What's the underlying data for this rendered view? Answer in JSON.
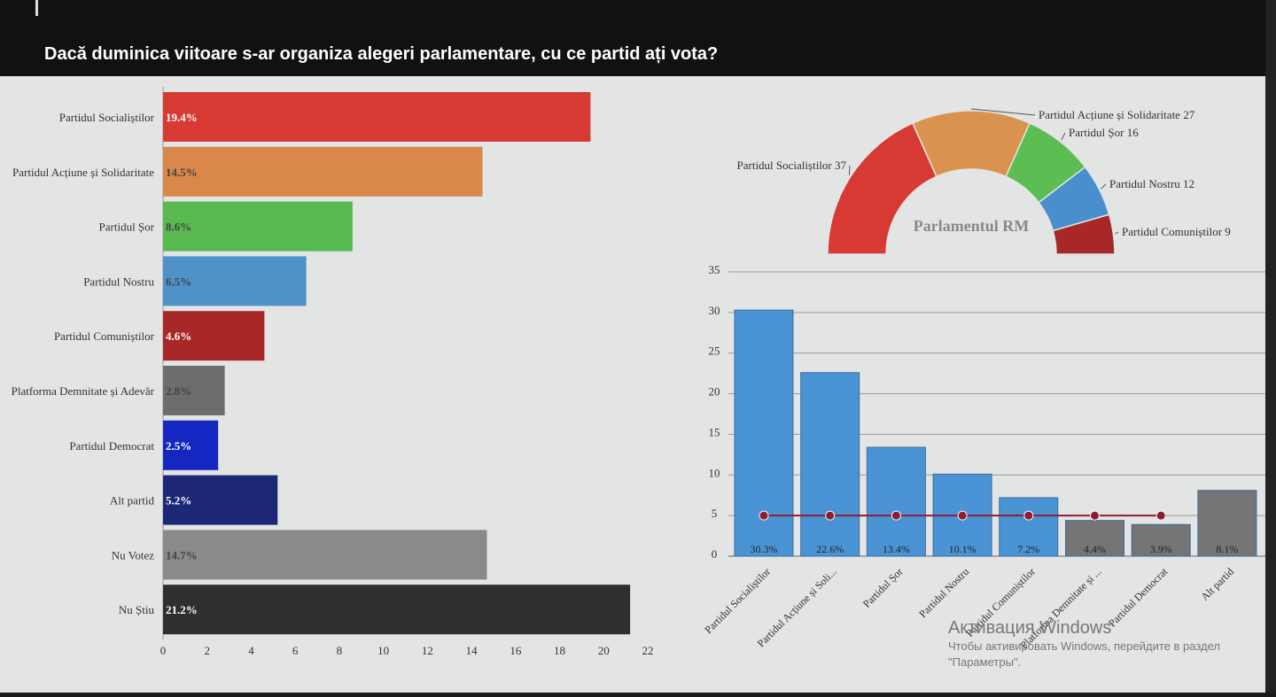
{
  "header": {
    "title": "Dacă duminica viitoare s-ar organiza alegeri parlamentare, cu ce partid ați vota?"
  },
  "chart_data": [
    {
      "type": "bar",
      "orientation": "horizontal",
      "categories": [
        "Partidul Socialiștilor",
        "Partidul Acțiune și Solidaritate",
        "Partidul Șor",
        "Partidul Nostru",
        "Partidul Comuniștilor",
        "Platforma Demnitate și Adevăr",
        "Partidul Democrat",
        "Alt partid",
        "Nu Votez",
        "Nu Știu"
      ],
      "values": [
        19.4,
        14.5,
        8.6,
        6.5,
        4.6,
        2.8,
        2.5,
        5.2,
        14.7,
        21.2
      ],
      "labels": [
        "19.4%",
        "14.5%",
        "8.6%",
        "6.5%",
        "4.6%",
        "2.8%",
        "2.5%",
        "5.2%",
        "14.7%",
        "21.2%"
      ],
      "colors": [
        "#d63a32",
        "#d9874a",
        "#58b94e",
        "#4f92c9",
        "#a82828",
        "#6d6d6d",
        "#1427c0",
        "#1c2776",
        "#8a8a8a",
        "#2f2f2f"
      ],
      "label_colors": [
        "#ffffff",
        "#444444",
        "#444444",
        "#444444",
        "#ffffff",
        "#444444",
        "#ffffff",
        "#ffffff",
        "#444444",
        "#ffffff"
      ],
      "xlim": [
        0,
        22
      ],
      "xticks": [
        0,
        2,
        4,
        6,
        8,
        10,
        12,
        14,
        16,
        18,
        20,
        22
      ]
    },
    {
      "type": "pie",
      "shape": "half-donut",
      "center_label": "Parlamentul RM",
      "slices": [
        {
          "name": "Partidul Socialiștilor",
          "value": 37,
          "label": "Partidul Socialiștilor 37",
          "color": "#d63a32"
        },
        {
          "name": "Partidul Acțiune și Solidaritate",
          "value": 27,
          "label": "Partidul Acțiune și Solidaritate 27",
          "color": "#d9934e"
        },
        {
          "name": "Partidul Șor",
          "value": 16,
          "label": "Partidul Șor 16",
          "color": "#5bbd52"
        },
        {
          "name": "Partidul Nostru",
          "value": 12,
          "label": "Partidul Nostru 12",
          "color": "#4a8fcd"
        },
        {
          "name": "Partidul Comuniștilor",
          "value": 9,
          "label": "Partidul Comuniștilor 9",
          "color": "#a82828"
        }
      ]
    },
    {
      "type": "bar",
      "categories": [
        "Partidul Socialiștilor",
        "Partidul Acțiune și Soli...",
        "Partidul Șor",
        "Partidul Nostru",
        "Partidul Comuniștilor",
        "Platforma Demnitate și ...",
        "Partidul Democrat",
        "Alt partid"
      ],
      "values": [
        30.3,
        22.6,
        13.4,
        10.1,
        7.2,
        4.4,
        3.9,
        8.1
      ],
      "labels": [
        "30.3%",
        "22.6%",
        "13.4%",
        "10.1%",
        "7.2%",
        "4.4%",
        "3.9%",
        "8.1%"
      ],
      "colors": [
        "#4a94d6",
        "#4a94d6",
        "#4a94d6",
        "#4a94d6",
        "#4a94d6",
        "#757575",
        "#757575",
        "#757575"
      ],
      "threshold": {
        "value": 5,
        "points": 7,
        "color": "#8e1d33"
      },
      "ylim": [
        0,
        35
      ],
      "yticks": [
        0,
        5,
        10,
        15,
        20,
        25,
        30,
        35
      ],
      "grid": true
    }
  ],
  "watermark": {
    "title": "Активация Windows",
    "subtitle": "Чтобы активировать Windows, перейдите в раздел \"Параметры\"."
  }
}
